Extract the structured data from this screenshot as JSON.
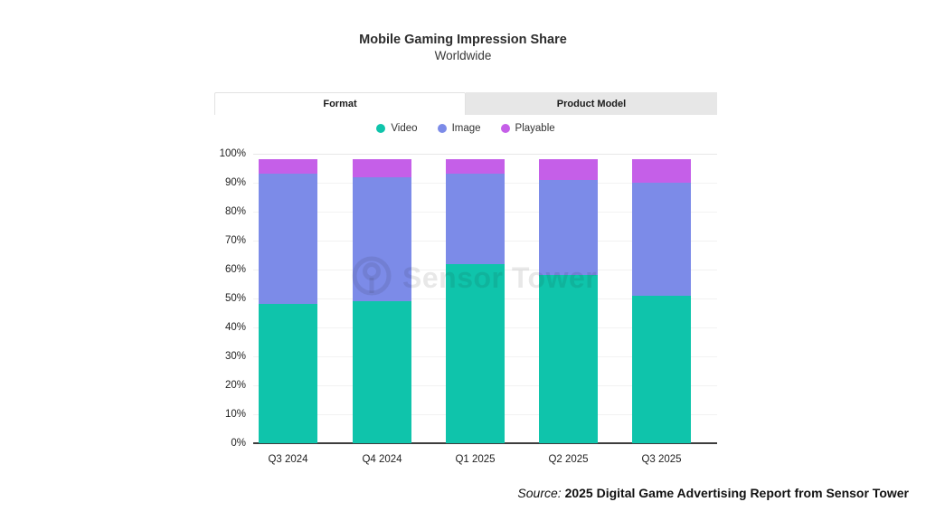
{
  "title": "Mobile Gaming Impression Share",
  "subtitle": "Worldwide",
  "tabs": [
    {
      "label": "Format",
      "active": true
    },
    {
      "label": "Product Model",
      "active": false
    }
  ],
  "watermark": {
    "text": "Sensor Tower"
  },
  "source": {
    "prefix": "Source:",
    "text": "2025 Digital Game Advertising Report from Sensor Tower"
  },
  "colors": {
    "video": "#0FC4AB",
    "image": "#7C8BE8",
    "playable": "#C55FE8",
    "tab_inactive_bg": "#E7E7E7",
    "tab_border": "#E2E2E2",
    "gridline": "#F2F2F2",
    "axis_line": "#3D3D3D",
    "text": "#222222"
  },
  "chart_data": {
    "type": "bar",
    "stacked": true,
    "stack_unit": "percent",
    "categories": [
      "Q3 2024",
      "Q4 2024",
      "Q1 2025",
      "Q2 2025",
      "Q3 2025"
    ],
    "series": [
      {
        "name": "Video",
        "color": "#0FC4AB",
        "values": [
          48,
          49,
          62,
          58,
          51
        ]
      },
      {
        "name": "Image",
        "color": "#7C8BE8",
        "values": [
          45,
          43,
          31,
          33,
          39
        ]
      },
      {
        "name": "Playable",
        "color": "#C55FE8",
        "values": [
          5,
          6,
          5,
          7,
          8
        ]
      }
    ],
    "title": "Mobile Gaming Impression Share",
    "subtitle": "Worldwide",
    "xlabel": "",
    "ylabel": "",
    "ylim": [
      0,
      100
    ],
    "yticks": [
      0,
      10,
      20,
      30,
      40,
      50,
      60,
      70,
      80,
      90,
      100
    ],
    "ytick_labels": [
      "0%",
      "10%",
      "20%",
      "30%",
      "40%",
      "50%",
      "60%",
      "70%",
      "80%",
      "90%",
      "100%"
    ],
    "grid": true,
    "legend_position": "top",
    "legend_entries": [
      "Video",
      "Image",
      "Playable"
    ]
  }
}
